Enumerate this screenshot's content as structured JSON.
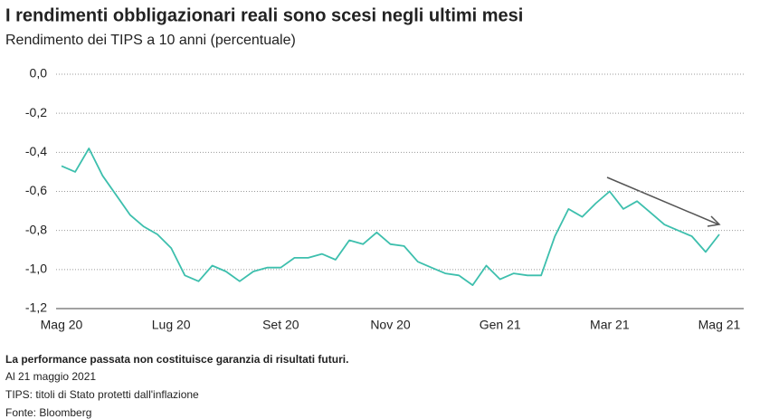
{
  "chart_data": {
    "type": "line",
    "title": "I rendimenti obbligazionari reali sono scesi negli ultimi mesi",
    "subtitle": "Rendimento dei TIPS a 10 anni (percentuale)",
    "categories": [
      "Mag 20",
      null,
      null,
      null,
      null,
      null,
      null,
      null,
      "Lug 20",
      null,
      null,
      null,
      null,
      null,
      null,
      null,
      "Set 20",
      null,
      null,
      null,
      null,
      null,
      null,
      null,
      "Nov 20",
      null,
      null,
      null,
      null,
      null,
      null,
      null,
      "Gen 21",
      null,
      null,
      null,
      null,
      null,
      null,
      null,
      "Mar 21",
      null,
      null,
      null,
      null,
      null,
      null,
      null,
      "Mag 21"
    ],
    "series": [
      {
        "name": "TIPS 10 anni",
        "color": "#3dbfad",
        "values": [
          -0.47,
          -0.5,
          -0.38,
          -0.52,
          -0.62,
          -0.72,
          -0.78,
          -0.82,
          -0.89,
          -1.03,
          -1.06,
          -0.98,
          -1.01,
          -1.06,
          -1.01,
          -0.99,
          -0.99,
          -0.94,
          -0.94,
          -0.92,
          -0.95,
          -0.85,
          -0.87,
          -0.81,
          -0.87,
          -0.88,
          -0.96,
          -0.99,
          -1.02,
          -1.03,
          -1.08,
          -0.98,
          -1.05,
          -1.02,
          -1.03,
          -1.03,
          -0.83,
          -0.69,
          -0.73,
          -0.66,
          -0.6,
          -0.69,
          -0.65,
          -0.71,
          -0.77,
          -0.8,
          -0.83,
          -0.91,
          -0.82
        ]
      }
    ],
    "ylim": [
      -1.2,
      0
    ],
    "yticks": [
      {
        "value": 0,
        "label": "0,0"
      },
      {
        "value": -0.2,
        "label": "-0,2"
      },
      {
        "value": -0.4,
        "label": "-0,4"
      },
      {
        "value": -0.6,
        "label": "-0,6"
      },
      {
        "value": -0.8,
        "label": "-0,8"
      },
      {
        "value": -1,
        "label": "-1,0"
      },
      {
        "value": -1.2,
        "label": "-1,2"
      }
    ],
    "grid": true,
    "notes": [
      "La performance passata non costituisce garanzia di risultati futuri.",
      "Al 21 maggio 2021",
      "TIPS: titoli di Stato protetti dall'inflazione",
      "Fonte: Bloomberg"
    ]
  }
}
